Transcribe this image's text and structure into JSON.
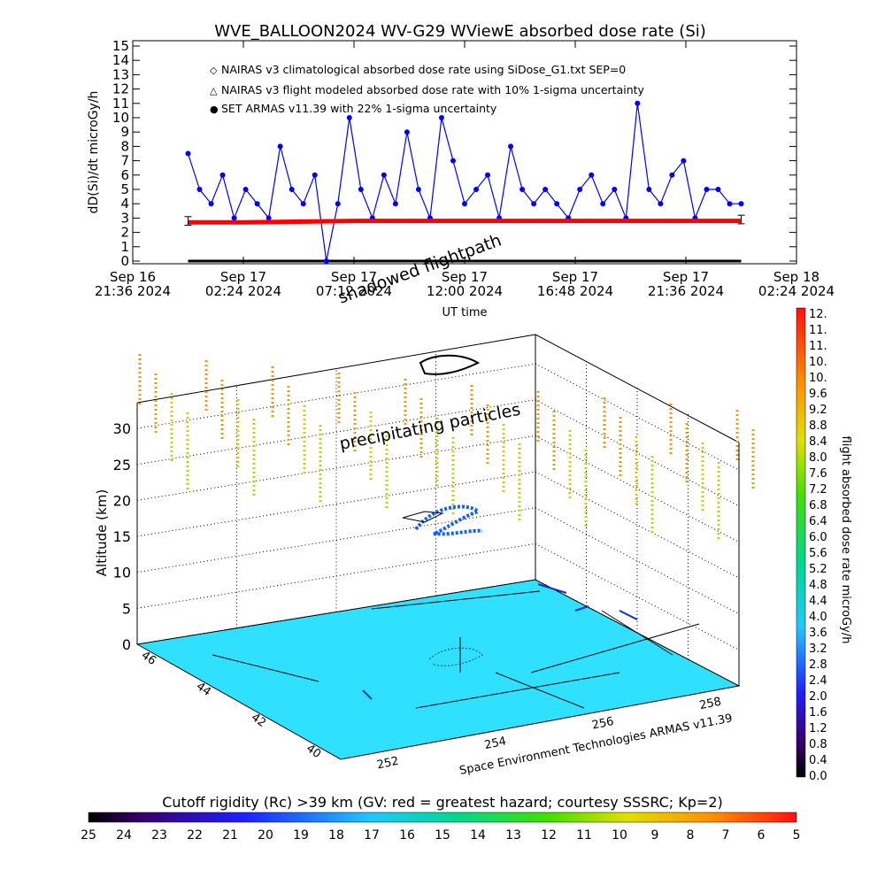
{
  "top_chart": {
    "title": "WVE_BALLOON2024 WV-G29 WViewE absorbed dose rate (Si)",
    "ylabel": "dD(Si)/dt microGy/h",
    "xlabel": "UT time",
    "yticks": [
      "0",
      "1",
      "2",
      "3",
      "4",
      "5",
      "6",
      "7",
      "8",
      "9",
      "10",
      "11",
      "12",
      "13",
      "14",
      "15"
    ],
    "xticks": [
      {
        "line1": "Sep 16",
        "line2": "21:36 2024"
      },
      {
        "line1": "Sep 17",
        "line2": "02:24 2024"
      },
      {
        "line1": "Sep 17",
        "line2": "07:12 2024"
      },
      {
        "line1": "Sep 17",
        "line2": "12:00 2024"
      },
      {
        "line1": "Sep 17",
        "line2": "16:48 2024"
      },
      {
        "line1": "Sep 17",
        "line2": "21:36 2024"
      },
      {
        "line1": "Sep 18",
        "line2": "02:24 2024"
      }
    ],
    "legend": [
      {
        "symbol": "◇",
        "text": "NAIRAS v3 climatological absorbed dose rate using SiDose_G1.txt SEP=0",
        "color": "#ff0000"
      },
      {
        "symbol": "△",
        "text": "NAIRAS v3 flight modeled absorbed dose rate with 10% 1-sigma uncertainty",
        "color": "#000000"
      },
      {
        "symbol": "●",
        "text": "SET ARMAS v11.39 with 22% 1-sigma uncertainty",
        "color": "#0000ff"
      }
    ]
  },
  "chart_data": [
    {
      "type": "scatter",
      "title": "WVE_BALLOON2024 WV-G29 WViewE absorbed dose rate (Si)",
      "xlabel": "UT time",
      "ylabel": "dD(Si)/dt microGy/h",
      "ylim": [
        0,
        15
      ],
      "xlim": [
        "Sep 16 21:36 2024",
        "Sep 18 02:24 2024"
      ],
      "series": [
        {
          "name": "NAIRAS v3 climatological absorbed dose rate using SiDose_G1.txt SEP=0",
          "color": "#ff0000",
          "x": [
            "Sep 17 00:00",
            "Sep 17 02:24",
            "Sep 17 07:12",
            "Sep 17 12:00",
            "Sep 17 16:48",
            "Sep 17 21:36",
            "Sep 18 00:00"
          ],
          "values": [
            2.7,
            2.7,
            2.8,
            2.8,
            2.8,
            2.8,
            2.8
          ]
        },
        {
          "name": "NAIRAS v3 flight modeled absorbed dose rate with 10% 1-sigma uncertainty",
          "color": "#000000",
          "x": [
            "Sep 17 00:00",
            "Sep 17 02:24",
            "Sep 17 07:12",
            "Sep 17 12:00",
            "Sep 17 16:48",
            "Sep 17 21:36",
            "Sep 18 00:00"
          ],
          "values": [
            2.8,
            2.8,
            2.9,
            2.9,
            2.9,
            2.9,
            2.9
          ]
        },
        {
          "name": "SET ARMAS v11.39 with 22% 1-sigma uncertainty",
          "color": "#0000ff",
          "x": [
            "Sep 17 00:00",
            "Sep 17 00:30",
            "Sep 17 01:00",
            "Sep 17 01:30",
            "Sep 17 02:00",
            "Sep 17 02:30",
            "Sep 17 03:00",
            "Sep 17 03:30",
            "Sep 17 04:00",
            "Sep 17 04:30",
            "Sep 17 05:00",
            "Sep 17 05:30",
            "Sep 17 06:00",
            "Sep 17 06:30",
            "Sep 17 07:00",
            "Sep 17 07:30",
            "Sep 17 08:00",
            "Sep 17 08:30",
            "Sep 17 09:00",
            "Sep 17 09:30",
            "Sep 17 10:00",
            "Sep 17 10:30",
            "Sep 17 11:00",
            "Sep 17 11:30",
            "Sep 17 12:00",
            "Sep 17 12:30",
            "Sep 17 13:00",
            "Sep 17 13:30",
            "Sep 17 14:00",
            "Sep 17 14:30",
            "Sep 17 15:00",
            "Sep 17 15:30",
            "Sep 17 16:00",
            "Sep 17 16:30",
            "Sep 17 17:00",
            "Sep 17 17:30",
            "Sep 17 18:00",
            "Sep 17 18:30",
            "Sep 17 19:00",
            "Sep 17 19:30",
            "Sep 17 20:00",
            "Sep 17 20:30",
            "Sep 17 21:00",
            "Sep 17 21:30",
            "Sep 17 22:00",
            "Sep 17 22:30",
            "Sep 17 23:00",
            "Sep 17 23:30",
            "Sep 18 00:00"
          ],
          "values": [
            7.5,
            5,
            4,
            6,
            3,
            5,
            4,
            3,
            8,
            5,
            4,
            6,
            0,
            4,
            10,
            5,
            3,
            6,
            4,
            9,
            5,
            3,
            10,
            7,
            4,
            5,
            6,
            3,
            8,
            5,
            4,
            5,
            4,
            3,
            5,
            6,
            4,
            5,
            3,
            11,
            5,
            4,
            6,
            7,
            3,
            5,
            5,
            4,
            4
          ]
        }
      ]
    },
    {
      "type": "heatmap",
      "title": "Cutoff rigidity (Rc) >39 km (GV: red = greatest hazard; courtesy SSSRC; Kp=2)",
      "zlabel": "Altitude (km)",
      "zticks": [
        "0",
        "5",
        "10",
        "15",
        "20",
        "25",
        "30"
      ],
      "lat_ticks": [
        "40",
        "42",
        "44",
        "46"
      ],
      "lon_ticks": [
        "252",
        "254",
        "256",
        "258"
      ],
      "annotations": [
        "shadowed flightpath",
        "precipitating particles",
        "Space Environment Technologies ARMAS v11.39"
      ]
    }
  ],
  "colorbar_right": {
    "label": "flight absorbed dose rate microGy/h",
    "ticks": [
      "12.",
      "11.",
      "11.",
      "10.",
      "10.",
      "9.6",
      "9.2",
      "8.8",
      "8.4",
      "8.0",
      "7.6",
      "7.2",
      "6.8",
      "6.4",
      "6.0",
      "5.6",
      "5.2",
      "4.8",
      "4.4",
      "4.0",
      "3.6",
      "3.2",
      "2.8",
      "2.4",
      "2.0",
      "1.6",
      "1.2",
      "0.8",
      "0.4",
      "0.0"
    ]
  },
  "colorbar_bottom": {
    "label": "Cutoff rigidity (Rc) >39 km (GV: red = greatest hazard; courtesy SSSRC; Kp=2)",
    "ticks": [
      "25",
      "24",
      "23",
      "22",
      "21",
      "20",
      "19",
      "18",
      "17",
      "16",
      "15",
      "14",
      "13",
      "12",
      "11",
      "10",
      "9",
      "8",
      "7",
      "6",
      "5"
    ]
  },
  "plot3d": {
    "zlabel": "Altitude (km)",
    "zticks": [
      "0",
      "5",
      "10",
      "15",
      "20",
      "25",
      "30"
    ],
    "lat_ticks": [
      "40",
      "42",
      "44",
      "46"
    ],
    "lon_ticks": [
      "252",
      "254",
      "256",
      "258"
    ],
    "annotation_shadow": "shadowed flightpath",
    "annotation_precip": "precipitating particles",
    "credit": "Space Environment Technologies ARMAS v11.39",
    "ground_color": "#30e0ff"
  }
}
